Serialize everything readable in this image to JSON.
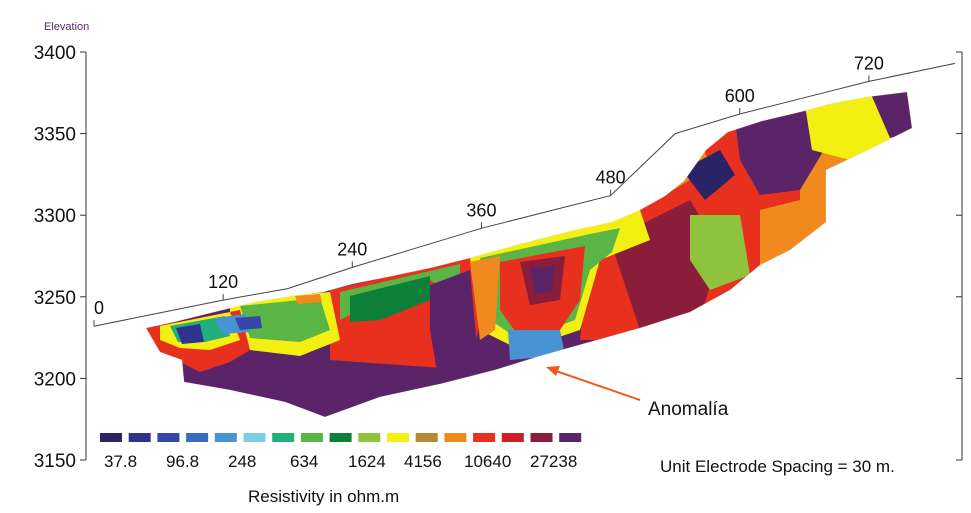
{
  "chart_data": {
    "type": "heatmap",
    "ylabel": "Elevation",
    "y_ticks": [
      3400,
      3350,
      3300,
      3250,
      3200,
      3150
    ],
    "ylim": [
      3150,
      3400
    ],
    "surface_distance_labels": [
      0,
      120,
      240,
      360,
      480,
      600,
      720
    ],
    "annotation": "Anomalía",
    "note": "Unit Electrode Spacing = 30 m.",
    "legend_title": "Resistivity in ohm.m",
    "legend_labels": [
      "37.8",
      "96.8",
      "248",
      "634",
      "1624",
      "4156",
      "10640",
      "27238"
    ],
    "legend_colors": [
      "#2a2466",
      "#2e338e",
      "#3447a8",
      "#3a6bc0",
      "#4a93d2",
      "#7ccfe5",
      "#21b07a",
      "#5ab446",
      "#0d7f3a",
      "#8fc33d",
      "#f4ef12",
      "#b98a34",
      "#f08a1e",
      "#e8301f",
      "#cc1f2a",
      "#8a1d3a",
      "#5c2468"
    ],
    "terrain_profile": [
      [
        0,
        3232
      ],
      [
        60,
        3240
      ],
      [
        120,
        3248
      ],
      [
        180,
        3255
      ],
      [
        240,
        3268
      ],
      [
        300,
        3280
      ],
      [
        360,
        3292
      ],
      [
        420,
        3302
      ],
      [
        480,
        3312
      ],
      [
        540,
        3350
      ],
      [
        600,
        3362
      ],
      [
        660,
        3372
      ],
      [
        720,
        3382
      ],
      [
        800,
        3393
      ]
    ]
  },
  "colors": {
    "background": "#ffffff",
    "arrow": "#ef5a1e",
    "text": "#111111",
    "elevation_label": "#5a2a6a"
  }
}
